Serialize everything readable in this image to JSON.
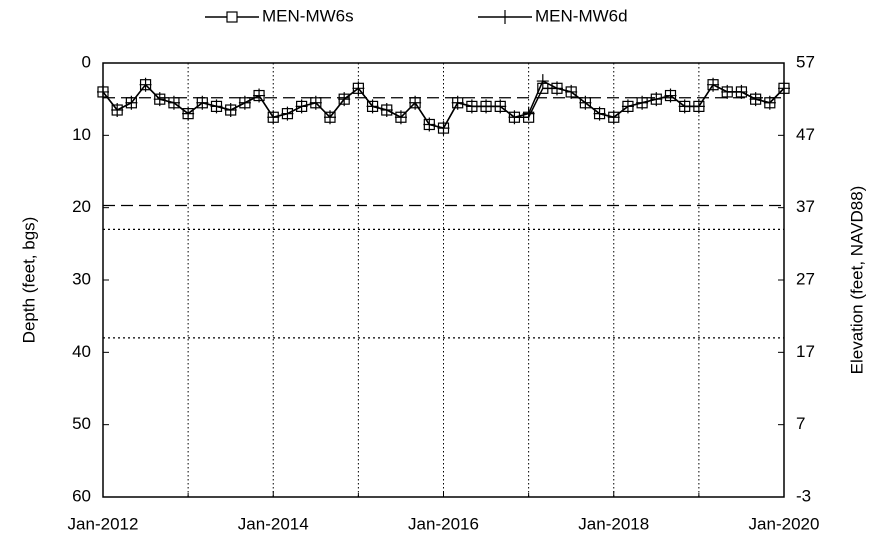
{
  "chart_data": {
    "type": "line",
    "y_label": "Depth (feet, bgs)",
    "y2_label": "Elevation (feet, NAVD88)",
    "x": [
      "2012-01",
      "2012-03",
      "2012-05",
      "2012-07",
      "2012-09",
      "2012-11",
      "2013-01",
      "2013-03",
      "2013-05",
      "2013-07",
      "2013-09",
      "2013-11",
      "2014-01",
      "2014-03",
      "2014-05",
      "2014-07",
      "2014-09",
      "2014-11",
      "2015-01",
      "2015-03",
      "2015-05",
      "2015-07",
      "2015-09",
      "2015-11",
      "2016-01",
      "2016-03",
      "2016-05",
      "2016-07",
      "2016-09",
      "2016-11",
      "2017-01",
      "2017-03",
      "2017-05",
      "2017-07",
      "2017-09",
      "2017-11",
      "2018-01",
      "2018-03",
      "2018-05",
      "2018-07",
      "2018-09",
      "2018-11",
      "2019-01",
      "2019-03",
      "2019-05",
      "2019-07",
      "2019-09",
      "2019-11",
      "2020-01"
    ],
    "series": [
      {
        "name": "MEN-MW6s",
        "color": "#000000",
        "marker": "square",
        "values": [
          4.0,
          6.5,
          5.5,
          3.0,
          5.0,
          5.5,
          7.0,
          5.5,
          6.0,
          6.5,
          5.5,
          4.5,
          7.5,
          7.0,
          6.0,
          5.5,
          7.5,
          5.0,
          3.5,
          6.0,
          6.5,
          7.5,
          5.5,
          8.5,
          9.0,
          5.5,
          6.0,
          6.0,
          6.0,
          7.5,
          7.5,
          3.5,
          3.5,
          4.0,
          5.5,
          7.0,
          7.5,
          6.0,
          5.5,
          5.0,
          4.5,
          6.0,
          6.0,
          3.0,
          4.0,
          4.0,
          5.0,
          5.5,
          3.5
        ]
      },
      {
        "name": "MEN-MW6d",
        "color": "#000000",
        "marker": "plus",
        "values": [
          4.0,
          6.5,
          5.5,
          3.0,
          5.0,
          5.5,
          7.0,
          5.5,
          6.0,
          6.5,
          5.5,
          4.5,
          7.5,
          7.0,
          6.0,
          5.5,
          7.5,
          5.0,
          3.5,
          6.0,
          6.5,
          7.5,
          5.5,
          8.5,
          9.0,
          5.5,
          6.0,
          6.0,
          6.0,
          7.5,
          7.0,
          2.5,
          3.5,
          4.0,
          5.5,
          7.0,
          7.5,
          6.0,
          5.5,
          5.0,
          4.5,
          6.0,
          6.0,
          3.0,
          4.0,
          4.0,
          5.0,
          5.5,
          3.5
        ]
      }
    ],
    "xlim": [
      "2012-01",
      "2020-01"
    ],
    "xticks": [
      {
        "value": "2012-01",
        "label": "Jan-2012"
      },
      {
        "value": "2014-01",
        "label": "Jan-2014"
      },
      {
        "value": "2016-01",
        "label": "Jan-2016"
      },
      {
        "value": "2018-01",
        "label": "Jan-2018"
      },
      {
        "value": "2020-01",
        "label": "Jan-2020"
      }
    ],
    "x_minor_ticks": [
      "2013-01",
      "2015-01",
      "2017-01",
      "2019-01"
    ],
    "x_grid": true,
    "ylim": [
      0,
      60
    ],
    "y_reversed": true,
    "yticks": [
      0,
      10,
      20,
      30,
      40,
      50,
      60
    ],
    "y2lim": [
      -3,
      57
    ],
    "y2ticks": [
      -3,
      7,
      17,
      27,
      37,
      47,
      57
    ],
    "reference_lines": [
      {
        "value": 4.8,
        "style": "dashed"
      },
      {
        "value": 19.7,
        "style": "dashed"
      },
      {
        "value": 23,
        "style": "dotted"
      },
      {
        "value": 38,
        "style": "dotted"
      }
    ],
    "legend": "top"
  }
}
